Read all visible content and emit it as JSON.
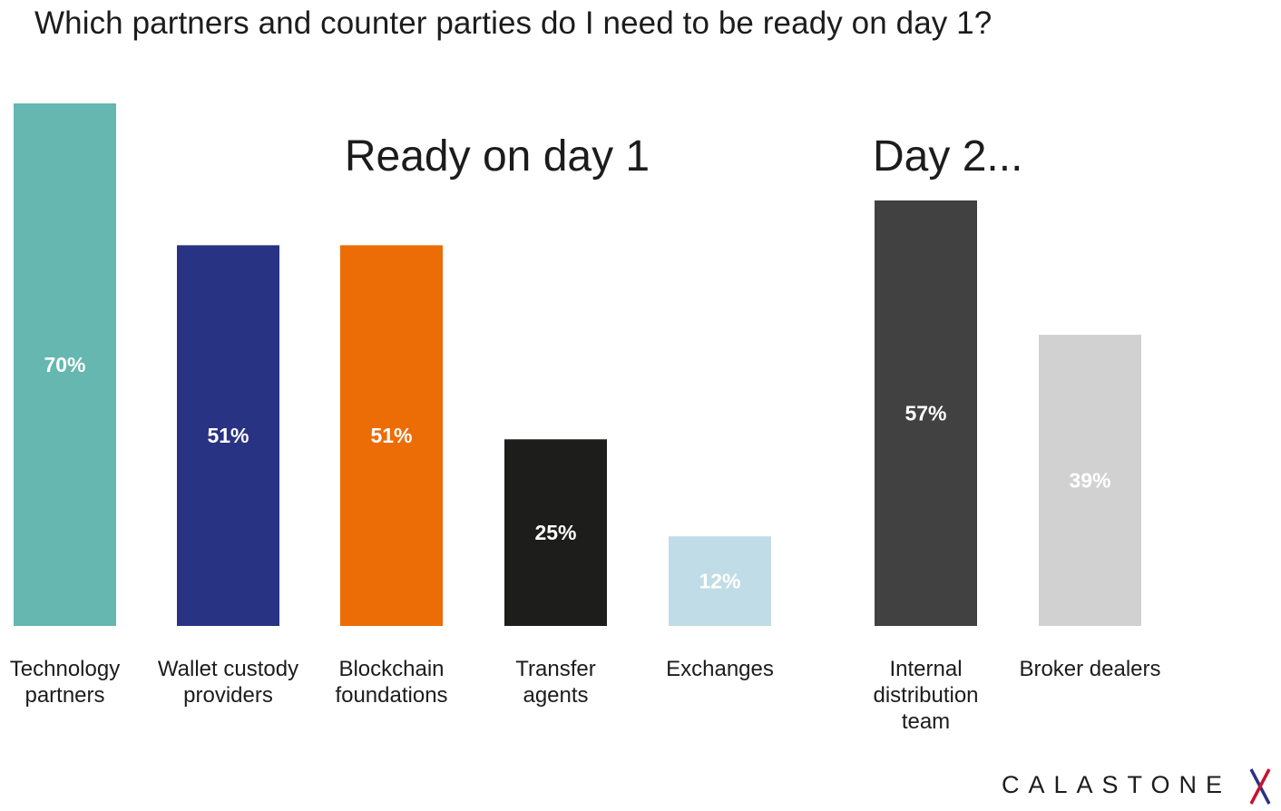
{
  "header": {
    "title": "Which partners and counter parties do I need to be ready on day 1?"
  },
  "chart_data": {
    "type": "bar",
    "title": "Which partners and counter parties do I need to be ready on day 1?",
    "xlabel": "",
    "ylabel": "",
    "ylim": [
      0,
      70
    ],
    "grid": false,
    "legend": "none",
    "groups": [
      {
        "label": "Ready on day 1",
        "categories": [
          0,
          1,
          2,
          3,
          4
        ]
      },
      {
        "label": "Day 2...",
        "categories": [
          5,
          6
        ]
      }
    ],
    "categories": [
      "Technology partners",
      "Wallet custody providers",
      "Blockchain foundations",
      "Transfer agents",
      "Exchanges",
      "Internal distribution team",
      "Broker dealers"
    ],
    "category_label_lines": [
      [
        "Technology",
        "partners"
      ],
      [
        "Wallet custody",
        "providers"
      ],
      [
        "Blockchain",
        "foundations"
      ],
      [
        "Transfer",
        "agents"
      ],
      [
        "Exchanges"
      ],
      [
        "Internal",
        "distribution",
        "team"
      ],
      [
        "Broker dealers"
      ]
    ],
    "values": [
      70,
      51,
      51,
      25,
      12,
      57,
      39
    ],
    "value_labels": [
      "70%",
      "51%",
      "51%",
      "25%",
      "12%",
      "57%",
      "39%"
    ],
    "colors": [
      "#65b7b0",
      "#293383",
      "#ec6d06",
      "#1d1d1b",
      "#c0dce6",
      "#414141",
      "#d1d1d1"
    ],
    "label_colors": [
      "#ffffff",
      "#ffffff",
      "#ffffff",
      "#ffffff",
      "#ffffff",
      "#ffffff",
      "#ffffff"
    ]
  },
  "logo": {
    "text": "CALASTONE",
    "mark_colors": [
      "#293383",
      "#c8102e"
    ]
  }
}
